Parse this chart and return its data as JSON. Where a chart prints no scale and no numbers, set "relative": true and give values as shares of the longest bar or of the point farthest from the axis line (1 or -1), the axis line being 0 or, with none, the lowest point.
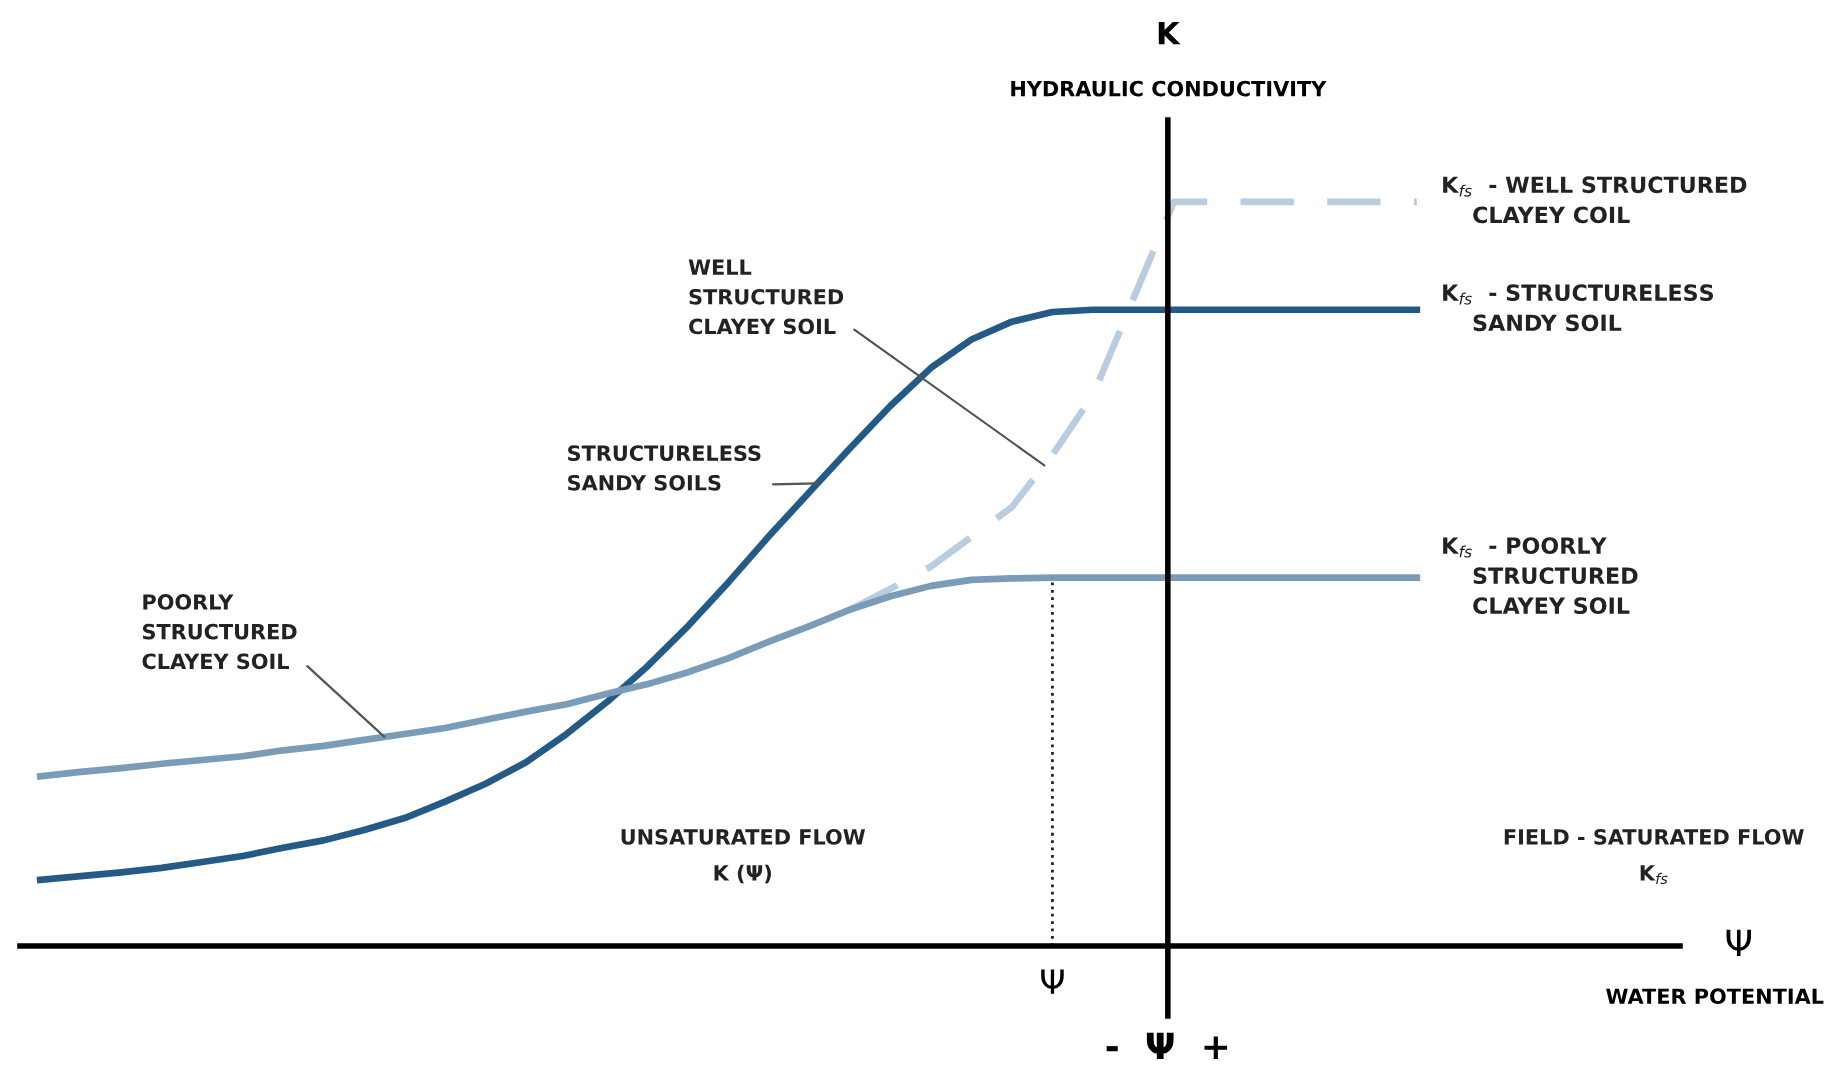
{
  "chart_data": {
    "type": "line",
    "relative": true,
    "marker": "none",
    "categories": [
      null,
      null,
      null,
      null,
      null,
      null,
      null,
      null,
      null,
      null,
      null,
      null,
      null,
      null,
      null,
      null,
      null,
      null,
      null,
      null,
      null,
      null,
      null,
      null,
      null,
      null,
      null,
      null,
      null,
      null,
      null,
      null,
      null,
      null,
      null
    ],
    "series": [
      {
        "name": "K$_{fs}$  - WELL STRUCTURED\n    CLAYEY COIL",
        "color": "#b9cde0",
        "line_style": "dashed",
        "values": [
          null,
          null,
          null,
          null,
          null,
          null,
          null,
          null,
          null,
          null,
          null,
          null,
          null,
          null,
          null,
          null,
          null,
          null,
          null,
          null,
          0.452,
          0.48,
          0.51,
          0.55,
          0.59,
          0.66,
          0.74,
          0.87,
          1,
          1,
          1,
          1,
          1,
          1,
          1
        ]
      },
      {
        "name": "K$_{fs}$  - STRUCTURELESS\n    SANDY SOIL",
        "color": "#245a86",
        "line_style": "solid",
        "values": [
          0.089,
          0.094,
          0.099,
          0.105,
          0.113,
          0.121,
          0.132,
          0.142,
          0.156,
          0.172,
          0.194,
          0.218,
          0.247,
          0.285,
          0.328,
          0.376,
          0.43,
          0.489,
          0.551,
          0.61,
          0.669,
          0.726,
          0.777,
          0.815,
          0.839,
          0.852,
          0.855,
          0.855,
          0.855,
          0.855,
          0.855,
          0.855,
          0.855,
          0.855,
          0.855
        ]
      },
      {
        "name": "K$_{fs}$  - POORLY\n    STRUCTURED\n    CLAYEY SOIL",
        "color": "#7a9cb8",
        "line_style": "solid",
        "values": [
          0.228,
          0.234,
          0.239,
          0.245,
          0.25,
          0.255,
          0.263,
          0.269,
          0.277,
          0.285,
          0.293,
          0.304,
          0.315,
          0.325,
          0.339,
          0.352,
          0.368,
          0.387,
          0.409,
          0.43,
          0.452,
          0.47,
          0.484,
          0.492,
          0.494,
          0.495,
          0.495,
          0.495,
          0.495,
          0.495,
          0.495,
          0.495,
          0.495,
          0.495,
          0.495
        ]
      }
    ],
    "annotations": [
      "K",
      "Ψ",
      "Ψ",
      "-  Ψ  +",
      "UNSATURATED FLOW\nK (Ψ)",
      "FIELD - SATURATED FLOW\nK$_{fs}$",
      "WELL\nSTRUCTURED\nCLAYEY SOIL",
      "STRUCTURELESS\nSANDY SOILS",
      "POORLY\nSTRUCTURED\nCLAYEY SOIL",
      "WATER POTENTIAL",
      "HYDRAULIC CONDUCTIVITY"
    ]
  }
}
